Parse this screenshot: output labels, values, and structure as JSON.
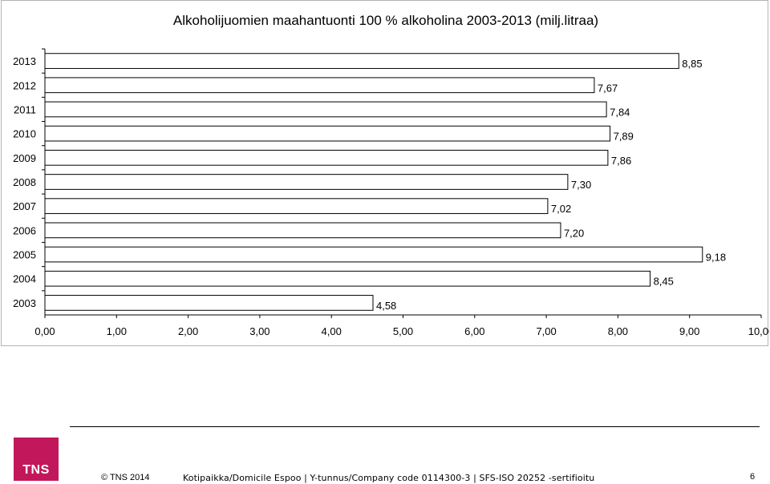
{
  "chart_data": {
    "type": "bar",
    "orientation": "horizontal",
    "title": "Alkoholijuomien maahantuonti 100 % alkoholina 2003-2013 (milj.litraa)",
    "categories": [
      "2013",
      "2012",
      "2011",
      "2010",
      "2009",
      "2008",
      "2007",
      "2006",
      "2005",
      "2004",
      "2003"
    ],
    "values": [
      8.85,
      7.67,
      7.84,
      7.89,
      7.86,
      7.3,
      7.02,
      7.2,
      9.18,
      8.45,
      4.58
    ],
    "value_labels": [
      "8,85",
      "7,67",
      "7,84",
      "7,89",
      "7,86",
      "7,30",
      "7,02",
      "7,20",
      "9,18",
      "8,45",
      "4,58"
    ],
    "xlim": [
      0,
      10
    ],
    "x_ticks": [
      0,
      1,
      2,
      3,
      4,
      5,
      6,
      7,
      8,
      9,
      10
    ],
    "x_tick_labels": [
      "0,00",
      "1,00",
      "2,00",
      "3,00",
      "4,00",
      "5,00",
      "6,00",
      "7,00",
      "8,00",
      "9,00",
      "10,00"
    ],
    "bar_color": "#ffffff",
    "bar_outline": "#000000",
    "grid": false,
    "legend": "none"
  },
  "footer": {
    "logo_text": "TNS",
    "copyright": "© TNS 2014",
    "company_line": "Kotipaikka/Domicile Espoo | Y-tunnus/Company code 0114300-3 | SFS-ISO 20252 -sertifioitu",
    "page_number": "6",
    "logo_color": "#c2185b"
  }
}
